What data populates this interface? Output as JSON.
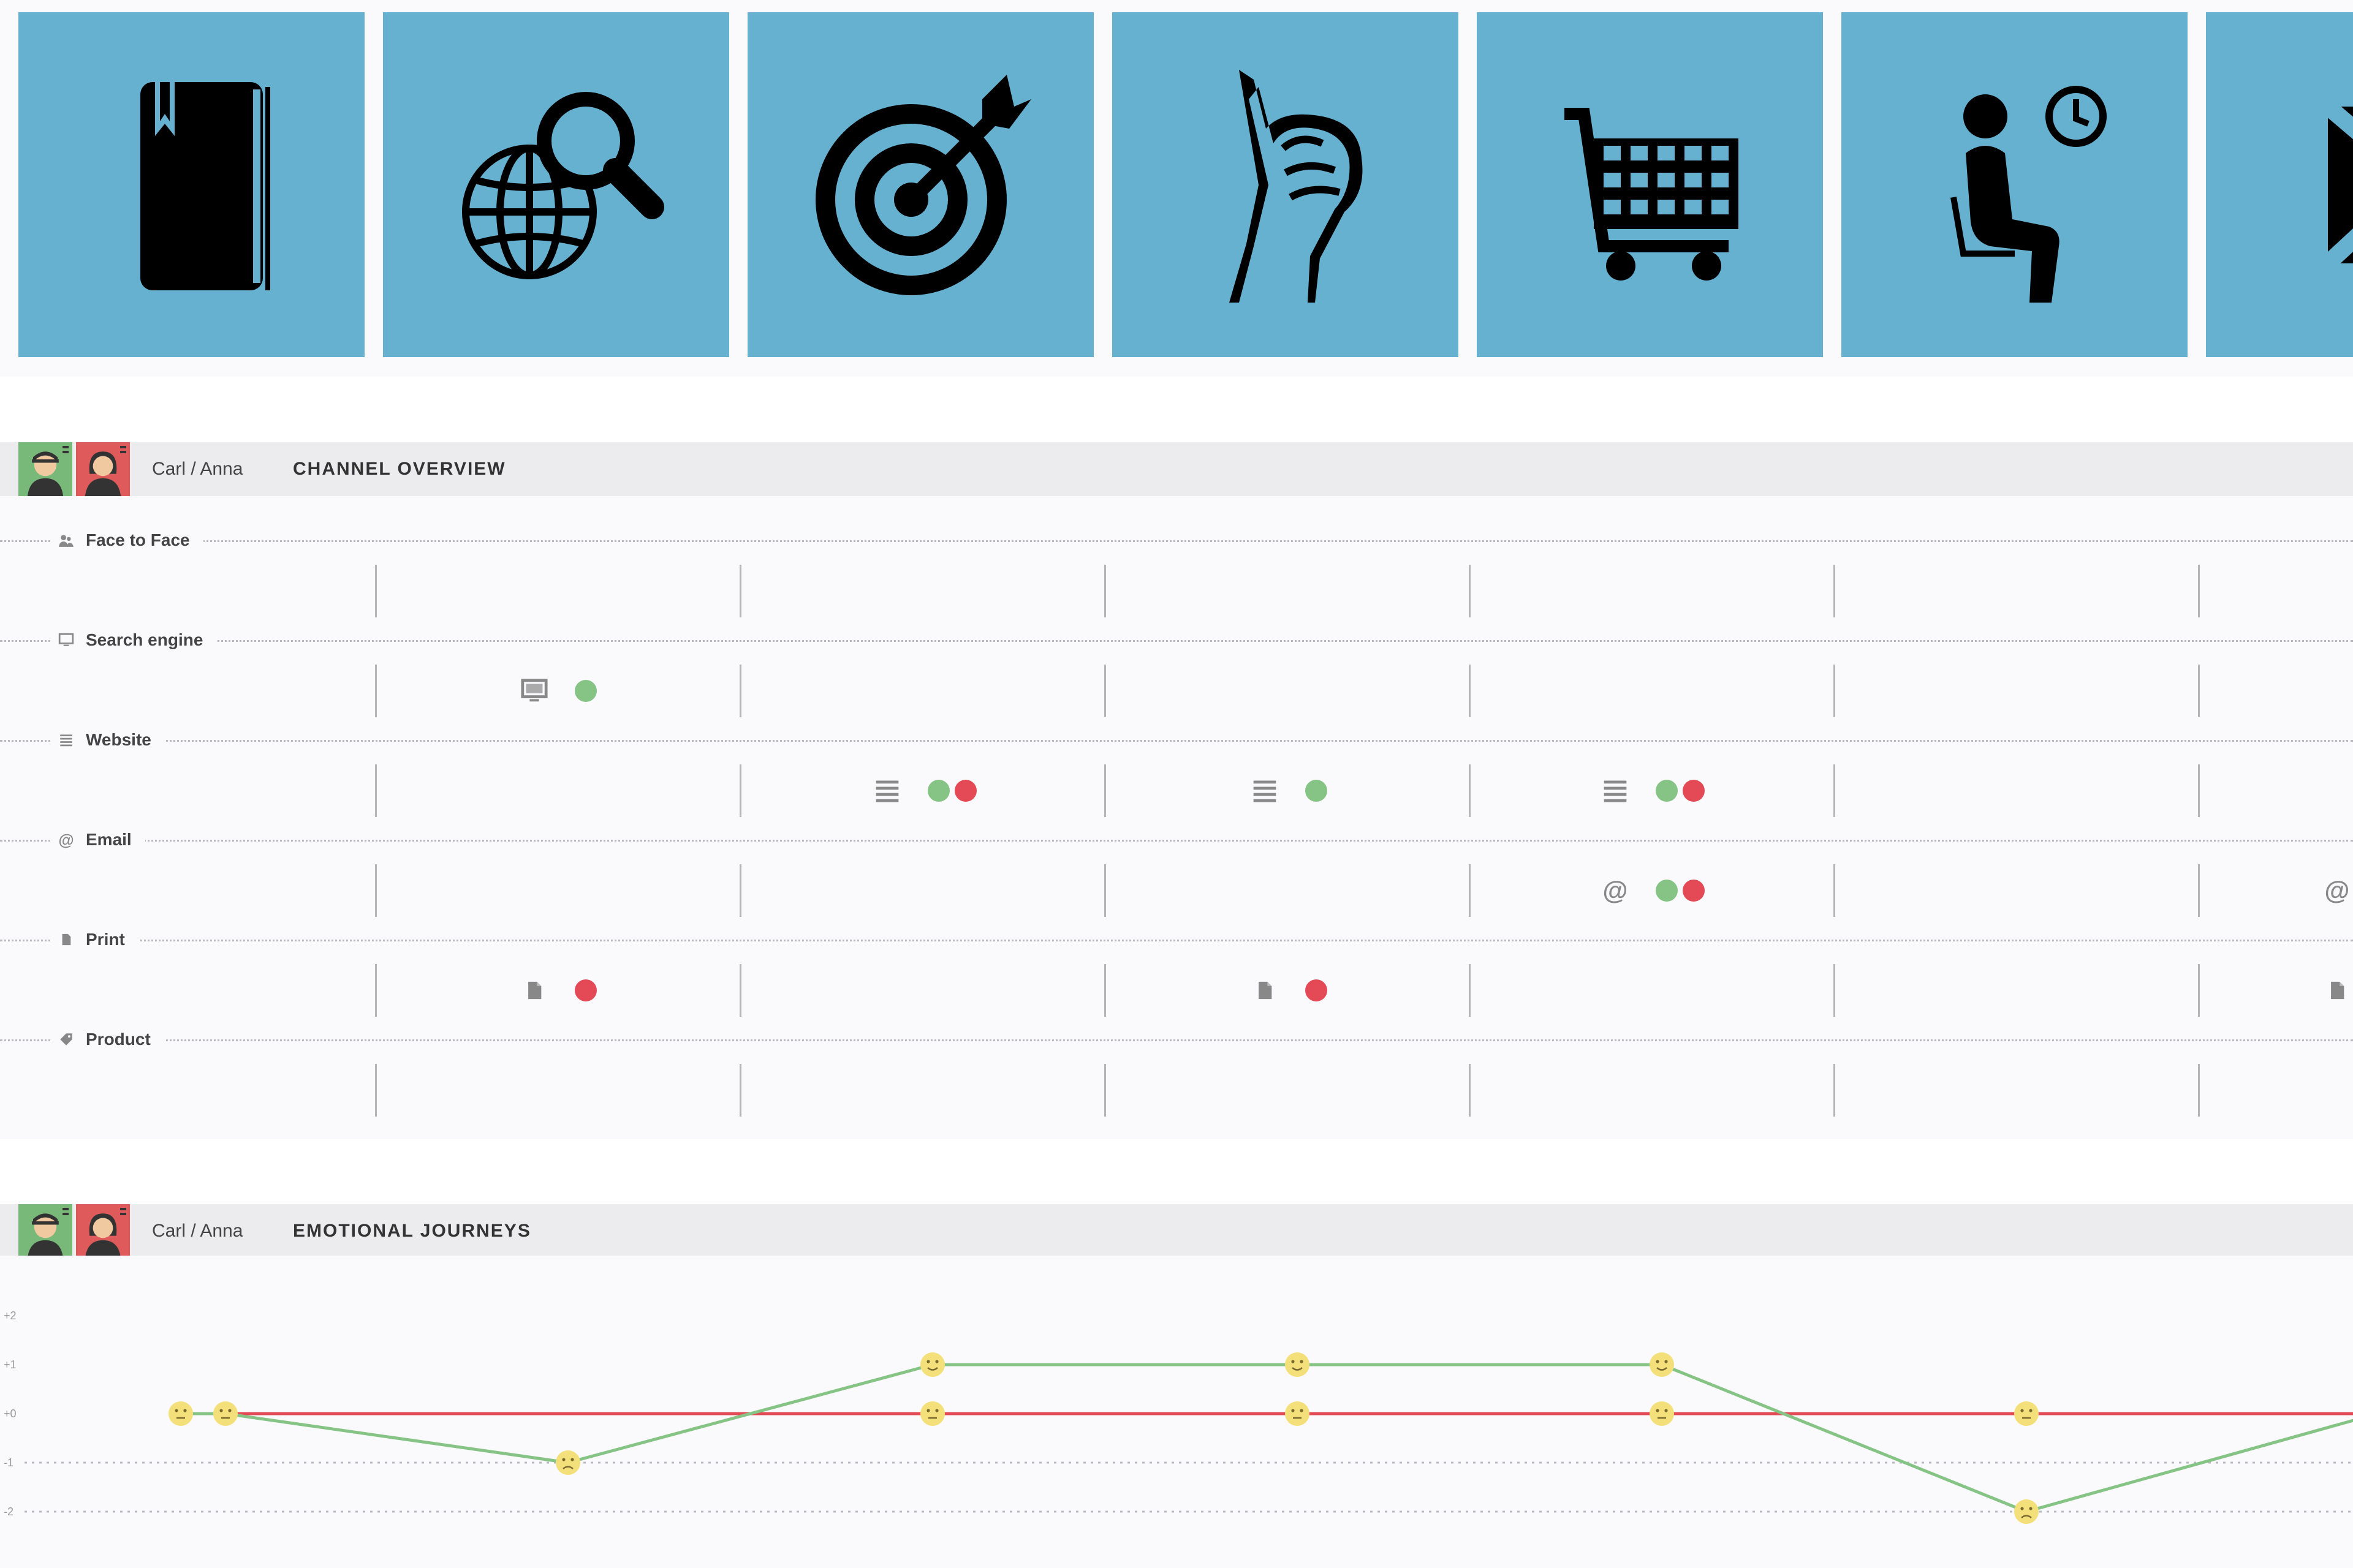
{
  "tiles": [
    {
      "icon": "book-icon"
    },
    {
      "icon": "globe-search-icon"
    },
    {
      "icon": "target-icon"
    },
    {
      "icon": "thumbs-up-icon"
    },
    {
      "icon": "shopping-cart-icon"
    },
    {
      "icon": "person-waiting-icon"
    },
    {
      "icon": "envelope-icon"
    }
  ],
  "colors": {
    "tile": "#66b0d0",
    "positive": "#86c485",
    "negative": "#e34a55",
    "carl": "#78b97a",
    "anna": "#df5b5b",
    "smiley": "#f3e07a"
  },
  "channel_overview": {
    "persona": "Carl / Anna",
    "title": "CHANNEL OVERVIEW",
    "channels": [
      {
        "label": "Face to Face",
        "icon": "people-icon"
      },
      {
        "label": "Search engine",
        "icon": "monitor-icon"
      },
      {
        "label": "Website",
        "icon": "list-icon"
      },
      {
        "label": "Email",
        "icon": "at-icon"
      },
      {
        "label": "Print",
        "icon": "document-icon"
      },
      {
        "label": "Product",
        "icon": "tag-icon"
      }
    ],
    "touchpoints": [
      {
        "channel": "Search engine",
        "column": 1,
        "icon": "monitor-icon",
        "carl": true,
        "anna": false
      },
      {
        "channel": "Website",
        "column": 2,
        "icon": "list-icon",
        "carl": true,
        "anna": true
      },
      {
        "channel": "Website",
        "column": 3,
        "icon": "list-icon",
        "carl": true,
        "anna": false
      },
      {
        "channel": "Website",
        "column": 4,
        "icon": "list-icon",
        "carl": true,
        "anna": true
      },
      {
        "channel": "Email",
        "column": 4,
        "icon": "at-icon",
        "carl": true,
        "anna": true
      },
      {
        "channel": "Email",
        "column": 6,
        "icon": "at-icon",
        "carl": false,
        "anna": false
      },
      {
        "channel": "Print",
        "column": 1,
        "icon": "document-icon",
        "carl": false,
        "anna": true
      },
      {
        "channel": "Print",
        "column": 3,
        "icon": "document-icon",
        "carl": false,
        "anna": true
      },
      {
        "channel": "Print",
        "column": 6,
        "icon": "document-icon",
        "carl": false,
        "anna": false
      }
    ]
  },
  "emotional_journeys": {
    "persona": "Carl / Anna",
    "title": "EMOTIONAL JOURNEYS",
    "y_ticks": [
      "+2",
      "+1",
      "+0",
      "-1",
      "-2"
    ]
  },
  "chart_data": {
    "type": "line",
    "ylim": [
      -2,
      2
    ],
    "y_tick_labels": [
      "+2",
      "+1",
      "+0",
      "-1",
      "-2"
    ],
    "x": [
      0,
      0.12,
      1,
      2,
      3,
      4,
      5,
      6
    ],
    "series": [
      {
        "name": "Carl",
        "color": "#86c485",
        "values": [
          0,
          0,
          -1,
          1,
          1,
          1,
          -2,
          0
        ]
      },
      {
        "name": "Anna",
        "color": "#e34a55",
        "values": [
          0,
          null,
          null,
          0,
          0,
          0,
          0,
          0
        ]
      }
    ]
  }
}
